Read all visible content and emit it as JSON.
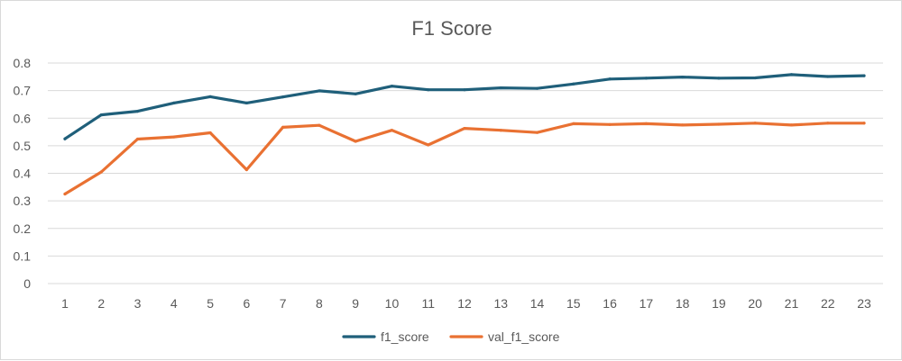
{
  "chart_data": {
    "type": "line",
    "title": "F1 Score",
    "xlabel": "",
    "ylabel": "",
    "categories": [
      "1",
      "2",
      "3",
      "4",
      "5",
      "6",
      "7",
      "8",
      "9",
      "10",
      "11",
      "12",
      "13",
      "14",
      "15",
      "16",
      "17",
      "18",
      "19",
      "20",
      "21",
      "22",
      "23"
    ],
    "y_ticks": [
      "0",
      "0.1",
      "0.2",
      "0.3",
      "0.4",
      "0.5",
      "0.6",
      "0.7",
      "0.8"
    ],
    "ylim": [
      0,
      0.8
    ],
    "grid": true,
    "legend_position": "bottom",
    "series": [
      {
        "name": "f1_score",
        "color": "#1f5f7a",
        "values": [
          0.525,
          0.612,
          0.625,
          0.655,
          0.678,
          0.655,
          0.677,
          0.699,
          0.688,
          0.716,
          0.703,
          0.703,
          0.71,
          0.708,
          0.724,
          0.742,
          0.745,
          0.749,
          0.745,
          0.746,
          0.758,
          0.751,
          0.754
        ]
      },
      {
        "name": "val_f1_score",
        "color": "#e97132",
        "values": [
          0.325,
          0.405,
          0.524,
          0.532,
          0.547,
          0.413,
          0.567,
          0.574,
          0.516,
          0.556,
          0.503,
          0.563,
          0.556,
          0.548,
          0.58,
          0.577,
          0.58,
          0.575,
          0.578,
          0.582,
          0.575,
          0.582,
          0.582
        ]
      }
    ]
  }
}
